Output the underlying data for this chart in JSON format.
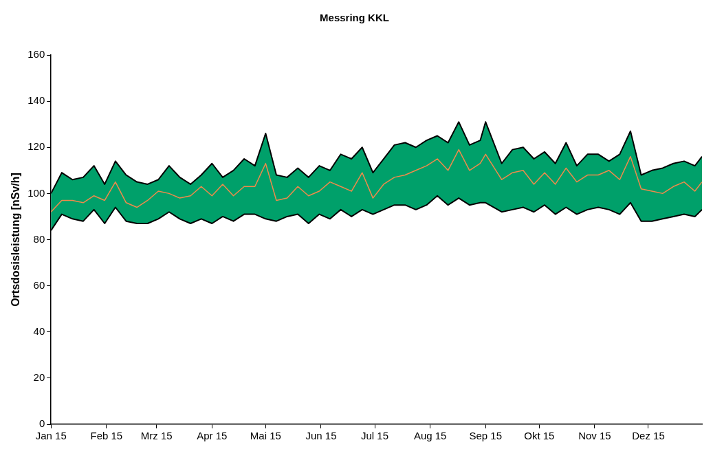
{
  "chart_data": {
    "type": "line",
    "title": "Messring KKL",
    "ylabel": "Ortsdosisleistung [nSv/h]",
    "x": [
      "2015-01-01",
      "2015-01-07",
      "2015-01-13",
      "2015-01-19",
      "2015-01-25",
      "2015-01-31",
      "2015-02-06",
      "2015-02-12",
      "2015-02-18",
      "2015-02-24",
      "2015-03-02",
      "2015-03-08",
      "2015-03-14",
      "2015-03-20",
      "2015-03-26",
      "2015-04-01",
      "2015-04-07",
      "2015-04-13",
      "2015-04-19",
      "2015-04-25",
      "2015-05-01",
      "2015-05-07",
      "2015-05-13",
      "2015-05-19",
      "2015-05-25",
      "2015-05-31",
      "2015-06-06",
      "2015-06-12",
      "2015-06-18",
      "2015-06-24",
      "2015-06-30",
      "2015-07-06",
      "2015-07-12",
      "2015-07-18",
      "2015-07-24",
      "2015-07-30",
      "2015-08-05",
      "2015-08-11",
      "2015-08-17",
      "2015-08-23",
      "2015-08-29",
      "2015-09-01",
      "2015-09-10",
      "2015-09-16",
      "2015-09-22",
      "2015-09-28",
      "2015-10-04",
      "2015-10-10",
      "2015-10-16",
      "2015-10-22",
      "2015-10-28",
      "2015-11-03",
      "2015-11-09",
      "2015-11-15",
      "2015-11-21",
      "2015-11-27",
      "2015-12-03",
      "2015-12-09",
      "2015-12-15",
      "2015-12-21",
      "2015-12-27",
      "2015-12-31"
    ],
    "series": [
      {
        "color": "#000000",
        "values": [
          84,
          91,
          89,
          88,
          93,
          87,
          94,
          88,
          87,
          87,
          89,
          92,
          89,
          87,
          89,
          87,
          90,
          88,
          91,
          91,
          89,
          88,
          90,
          91,
          87,
          91,
          89,
          93,
          90,
          93,
          91,
          93,
          95,
          95,
          93,
          95,
          99,
          95,
          98,
          95,
          96,
          96,
          92,
          93,
          94,
          92,
          95,
          91,
          94,
          91,
          93,
          94,
          93,
          91,
          96,
          88,
          88,
          89,
          90,
          91,
          90,
          93
        ]
      },
      {
        "color": "#000000",
        "values": [
          100,
          109,
          106,
          107,
          112,
          104,
          114,
          108,
          105,
          104,
          106,
          112,
          107,
          104,
          108,
          113,
          107,
          110,
          115,
          112,
          126,
          108,
          107,
          111,
          107,
          112,
          110,
          117,
          115,
          120,
          109,
          115,
          121,
          122,
          120,
          123,
          125,
          122,
          131,
          121,
          123,
          131,
          113,
          119,
          120,
          115,
          118,
          113,
          122,
          112,
          117,
          117,
          114,
          117,
          127,
          108,
          110,
          111,
          113,
          114,
          112,
          116
        ]
      },
      {
        "color": "#f08a4b",
        "values": [
          92,
          97,
          97,
          96,
          99,
          97,
          105,
          96,
          94,
          97,
          101,
          100,
          98,
          99,
          103,
          99,
          104,
          99,
          103,
          103,
          113,
          97,
          98,
          103,
          99,
          101,
          105,
          103,
          101,
          109,
          98,
          104,
          107,
          108,
          110,
          112,
          115,
          110,
          119,
          110,
          113,
          117,
          106,
          109,
          110,
          104,
          109,
          104,
          111,
          105,
          108,
          108,
          110,
          106,
          116,
          102,
          101,
          100,
          103,
          105,
          101,
          105
        ],
        "lower": [
          84,
          91,
          89,
          88,
          93,
          87,
          94,
          88,
          87,
          87,
          89,
          92,
          89,
          87,
          89,
          87,
          90,
          88,
          91,
          91,
          89,
          88,
          90,
          91,
          87,
          91,
          89,
          93,
          90,
          93,
          91,
          93,
          95,
          95,
          93,
          95,
          99,
          95,
          98,
          95,
          96,
          96,
          92,
          93,
          94,
          92,
          95,
          91,
          94,
          91,
          93,
          94,
          93,
          91,
          96,
          88,
          88,
          89,
          90,
          91,
          90,
          93
        ],
        "upper": [
          100,
          109,
          106,
          107,
          112,
          104,
          114,
          108,
          105,
          104,
          106,
          112,
          107,
          104,
          108,
          113,
          107,
          110,
          115,
          112,
          126,
          108,
          107,
          111,
          107,
          112,
          110,
          117,
          115,
          120,
          109,
          115,
          121,
          122,
          120,
          123,
          125,
          122,
          131,
          121,
          123,
          131,
          113,
          119,
          120,
          115,
          118,
          113,
          122,
          112,
          117,
          117,
          114,
          117,
          127,
          108,
          110,
          111,
          113,
          114,
          112,
          116
        ]
      }
    ],
    "xlim": [
      "2015-01-01",
      "2015-12-31"
    ],
    "xticks": [
      {
        "value": "2015-01-01",
        "label": "Jan 15"
      },
      {
        "value": "2015-02-01",
        "label": "Feb 15"
      },
      {
        "value": "2015-03-01",
        "label": "Mrz 15"
      },
      {
        "value": "2015-04-01",
        "label": "Apr 15"
      },
      {
        "value": "2015-05-01",
        "label": "Mai 15"
      },
      {
        "value": "2015-06-01",
        "label": "Jun 15"
      },
      {
        "value": "2015-07-01",
        "label": "Jul 15"
      },
      {
        "value": "2015-08-01",
        "label": "Aug 15"
      },
      {
        "value": "2015-09-01",
        "label": "Sep 15"
      },
      {
        "value": "2015-10-01",
        "label": "Okt 15"
      },
      {
        "value": "2015-11-01",
        "label": "Nov 15"
      },
      {
        "value": "2015-12-01",
        "label": "Dez 15"
      }
    ],
    "ylim": [
      0,
      160
    ],
    "yticks": [
      0,
      20,
      40,
      60,
      80,
      100,
      120,
      140,
      160
    ],
    "grid": false,
    "marker": "none",
    "line_style": "solid"
  }
}
